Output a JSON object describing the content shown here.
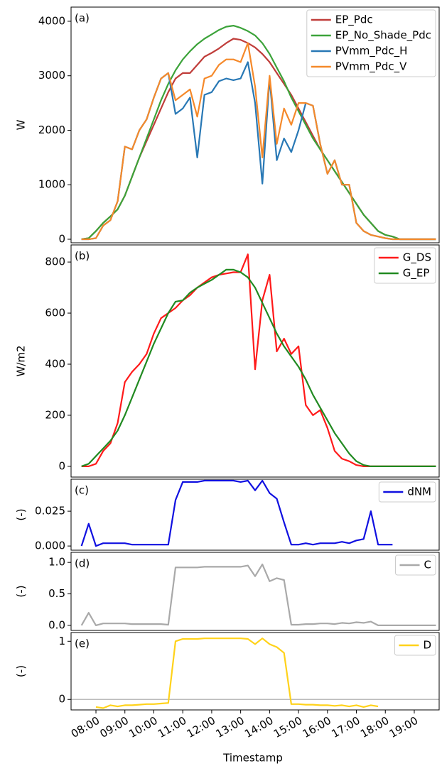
{
  "chart_data": [
    {
      "type": "line",
      "annotation": "(a)",
      "ylabel": "W",
      "legend": "upper right",
      "x": [
        7.5,
        7.75,
        8,
        8.25,
        8.5,
        8.75,
        9,
        9.25,
        9.5,
        9.75,
        10,
        10.25,
        10.5,
        10.75,
        11,
        11.25,
        11.5,
        11.75,
        12,
        12.25,
        12.5,
        12.75,
        13,
        13.25,
        13.5,
        13.75,
        14,
        14.25,
        14.5,
        14.75,
        15,
        15.25,
        15.5,
        15.75,
        16,
        16.25,
        16.5,
        16.75,
        17,
        17.25,
        17.5,
        17.75,
        18,
        18.25,
        18.5,
        18.75,
        19,
        19.25,
        19.5,
        19.75
      ],
      "xlim": [
        7.14,
        19.86
      ],
      "ylim": [
        -65,
        4260
      ],
      "yticks": [
        0,
        1000,
        2000,
        3000,
        4000
      ],
      "series": [
        {
          "name": "EP_Pdc",
          "color": "#c03d3a",
          "values": [
            0,
            20,
            150,
            300,
            420,
            550,
            800,
            1150,
            1500,
            1800,
            2100,
            2400,
            2700,
            2950,
            3050,
            3050,
            3200,
            3350,
            3420,
            3500,
            3600,
            3680,
            3660,
            3600,
            3520,
            3400,
            3250,
            3050,
            2850,
            2650,
            2400,
            2150,
            1900,
            1650,
            1450,
            1250,
            1050,
            850,
            650,
            450,
            300,
            150,
            80,
            50,
            0,
            0,
            0,
            0,
            0,
            0
          ]
        },
        {
          "name": "EP_No_Shade_Pdc",
          "color": "#3ca33a",
          "values": [
            0,
            20,
            150,
            300,
            420,
            550,
            800,
            1150,
            1500,
            1850,
            2200,
            2550,
            2850,
            3100,
            3300,
            3450,
            3580,
            3680,
            3760,
            3840,
            3900,
            3920,
            3880,
            3820,
            3740,
            3600,
            3400,
            3150,
            2900,
            2600,
            2350,
            2100,
            1850,
            1650,
            1450,
            1250,
            1050,
            850,
            650,
            450,
            300,
            150,
            80,
            50,
            0,
            0,
            0,
            0,
            0,
            0
          ]
        },
        {
          "name": "PVmm_Pdc_H",
          "color": "#2878b5",
          "values": [
            0,
            0,
            20,
            250,
            350,
            700,
            1700,
            1650,
            2000,
            2200,
            2600,
            2950,
            3050,
            2300,
            2400,
            2600,
            1500,
            2650,
            2700,
            2900,
            2950,
            2920,
            2950,
            3250,
            2500,
            1020,
            2950,
            1450,
            1850,
            1600,
            2000,
            2500,
            2450,
            1750,
            1200,
            1450,
            1000,
            1000,
            300,
            150,
            80,
            50,
            20,
            0,
            0,
            0,
            0,
            0,
            0,
            0
          ]
        },
        {
          "name": "PVmm_Pdc_V",
          "color": "#f5892a",
          "values": [
            0,
            0,
            20,
            250,
            350,
            700,
            1700,
            1650,
            2000,
            2200,
            2600,
            2950,
            3050,
            2550,
            2650,
            2750,
            2250,
            2950,
            3000,
            3200,
            3300,
            3300,
            3250,
            3600,
            2800,
            1500,
            3000,
            1750,
            2400,
            2100,
            2500,
            2500,
            2450,
            1750,
            1200,
            1450,
            1000,
            1000,
            300,
            150,
            80,
            50,
            20,
            0,
            0,
            0,
            0,
            0,
            0,
            0
          ]
        }
      ]
    },
    {
      "type": "line",
      "annotation": "(b)",
      "ylabel": "W/m2",
      "legend": "upper right",
      "x": [
        7.5,
        7.75,
        8,
        8.25,
        8.5,
        8.75,
        9,
        9.25,
        9.5,
        9.75,
        10,
        10.25,
        10.5,
        10.75,
        11,
        11.25,
        11.5,
        11.75,
        12,
        12.25,
        12.5,
        12.75,
        13,
        13.25,
        13.5,
        13.75,
        14,
        14.25,
        14.5,
        14.75,
        15,
        15.25,
        15.5,
        15.75,
        16,
        16.25,
        16.5,
        16.75,
        17,
        17.25,
        17.5,
        17.75,
        18,
        18.25,
        18.5,
        18.75,
        19,
        19.25,
        19.5,
        19.75
      ],
      "xlim": [
        7.14,
        19.86
      ],
      "ylim": [
        -42,
        867
      ],
      "yticks": [
        0,
        200,
        400,
        600,
        800
      ],
      "series": [
        {
          "name": "G_DS",
          "color": "#ff1a1a",
          "values": [
            0,
            0,
            10,
            60,
            90,
            170,
            330,
            370,
            400,
            440,
            520,
            580,
            600,
            620,
            650,
            670,
            700,
            720,
            740,
            750,
            755,
            760,
            760,
            830,
            380,
            650,
            750,
            450,
            500,
            440,
            470,
            240,
            200,
            220,
            150,
            60,
            30,
            20,
            5,
            0,
            0,
            0,
            0,
            0,
            0,
            0,
            0,
            0,
            0,
            0
          ]
        },
        {
          "name": "G_EP",
          "color": "#218a21",
          "values": [
            0,
            10,
            40,
            70,
            100,
            140,
            200,
            270,
            340,
            410,
            480,
            540,
            600,
            645,
            650,
            680,
            700,
            715,
            730,
            750,
            770,
            770,
            760,
            740,
            700,
            640,
            580,
            520,
            470,
            430,
            390,
            340,
            280,
            230,
            180,
            130,
            90,
            50,
            20,
            5,
            0,
            0,
            0,
            0,
            0,
            0,
            0,
            0,
            0,
            0
          ]
        }
      ]
    },
    {
      "type": "line",
      "annotation": "(c)",
      "ylabel": "(-)",
      "legend": "upper right",
      "x": [
        7.5,
        7.75,
        8,
        8.25,
        8.5,
        8.75,
        9,
        9.25,
        9.5,
        9.75,
        10,
        10.25,
        10.5,
        10.75,
        11,
        11.25,
        11.5,
        11.75,
        12,
        12.25,
        12.5,
        12.75,
        13,
        13.25,
        13.5,
        13.75,
        14,
        14.25,
        14.5,
        14.75,
        15,
        15.25,
        15.5,
        15.75,
        16,
        16.25,
        16.5,
        16.75,
        17,
        17.25,
        17.5,
        17.75,
        18,
        18.25,
        18.5,
        18.75,
        19,
        19.25,
        19.5,
        19.75
      ],
      "xlim": [
        7.14,
        19.86
      ],
      "ylim": [
        -0.003,
        0.048
      ],
      "yticks": [
        {
          "value": 0,
          "label": "0.000"
        },
        {
          "value": 0.025,
          "label": "0.025"
        }
      ],
      "series": [
        {
          "name": "dNM",
          "color": "#1010e0",
          "values": [
            0,
            0.016,
            0,
            0.002,
            0.002,
            0.002,
            0.002,
            0.001,
            0.001,
            0.001,
            0.001,
            0.001,
            0.001,
            0.033,
            0.046,
            0.046,
            0.046,
            0.047,
            0.047,
            0.047,
            0.047,
            0.047,
            0.046,
            0.047,
            0.04,
            0.047,
            0.038,
            0.034,
            0.017,
            0.001,
            0.001,
            0.002,
            0.001,
            0.002,
            0.002,
            0.002,
            0.003,
            0.002,
            0.004,
            0.005,
            0.025,
            0.001,
            0.001,
            0.001,
            null,
            null,
            null,
            null,
            null,
            null
          ]
        }
      ]
    },
    {
      "type": "line",
      "annotation": "(d)",
      "ylabel": "(-)",
      "legend": "upper right",
      "x": [
        7.5,
        7.75,
        8,
        8.25,
        8.5,
        8.75,
        9,
        9.25,
        9.5,
        9.75,
        10,
        10.25,
        10.5,
        10.75,
        11,
        11.25,
        11.5,
        11.75,
        12,
        12.25,
        12.5,
        12.75,
        13,
        13.25,
        13.5,
        13.75,
        14,
        14.25,
        14.5,
        14.75,
        15,
        15.25,
        15.5,
        15.75,
        16,
        16.25,
        16.5,
        16.75,
        17,
        17.25,
        17.5,
        17.75,
        18,
        18.25,
        18.5,
        18.75,
        19,
        19.25,
        19.5,
        19.75
      ],
      "xlim": [
        7.14,
        19.86
      ],
      "ylim": [
        -0.08,
        1.16
      ],
      "yticks": [
        {
          "value": 0,
          "label": "0.0"
        },
        {
          "value": 0.5,
          "label": "0.5"
        },
        {
          "value": 1,
          "label": "1.0"
        }
      ],
      "series": [
        {
          "name": "C",
          "color": "#a9a9a9",
          "values": [
            0,
            0.2,
            0,
            0.03,
            0.03,
            0.03,
            0.03,
            0.02,
            0.02,
            0.02,
            0.02,
            0.02,
            0.01,
            0.92,
            0.92,
            0.92,
            0.92,
            0.93,
            0.93,
            0.93,
            0.93,
            0.93,
            0.93,
            0.95,
            0.78,
            0.97,
            0.7,
            0.75,
            0.72,
            0.01,
            0.01,
            0.02,
            0.02,
            0.03,
            0.03,
            0.02,
            0.04,
            0.03,
            0.05,
            0.04,
            0.06,
            0,
            0,
            0,
            0,
            0,
            0,
            0,
            0,
            0
          ]
        }
      ]
    },
    {
      "type": "line",
      "annotation": "(e)",
      "ylabel": "(-)",
      "legend": "upper right",
      "xlabel": "Timestamp",
      "x": [
        7.5,
        7.75,
        8,
        8.25,
        8.5,
        8.75,
        9,
        9.25,
        9.5,
        9.75,
        10,
        10.25,
        10.5,
        10.75,
        11,
        11.25,
        11.5,
        11.75,
        12,
        12.25,
        12.5,
        12.75,
        13,
        13.25,
        13.5,
        13.75,
        14,
        14.25,
        14.5,
        14.75,
        15,
        15.25,
        15.5,
        15.75,
        16,
        16.25,
        16.5,
        16.75,
        17,
        17.25,
        17.5,
        17.75,
        18,
        18.25,
        18.5,
        18.75,
        19,
        19.25,
        19.5,
        19.75
      ],
      "xlim": [
        7.14,
        19.86
      ],
      "ylim": [
        -0.18,
        1.15
      ],
      "yticks": [
        0,
        1
      ],
      "reference_line": 0,
      "xticks": [
        {
          "value": 8,
          "label": "08:00"
        },
        {
          "value": 9,
          "label": "09:00"
        },
        {
          "value": 10,
          "label": "10:00"
        },
        {
          "value": 11,
          "label": "11:00"
        },
        {
          "value": 12,
          "label": "12:00"
        },
        {
          "value": 13,
          "label": "13:00"
        },
        {
          "value": 14,
          "label": "14:00"
        },
        {
          "value": 15,
          "label": "15:00"
        },
        {
          "value": 16,
          "label": "16:00"
        },
        {
          "value": 17,
          "label": "17:00"
        },
        {
          "value": 18,
          "label": "18:00"
        },
        {
          "value": 19,
          "label": "19:00"
        }
      ],
      "series": [
        {
          "name": "D",
          "color": "#ffd21a",
          "values": [
            null,
            null,
            -0.13,
            -0.15,
            -0.1,
            -0.12,
            -0.1,
            -0.1,
            -0.09,
            -0.08,
            -0.08,
            -0.07,
            -0.06,
            1.0,
            1.04,
            1.04,
            1.04,
            1.05,
            1.05,
            1.05,
            1.05,
            1.05,
            1.05,
            1.04,
            0.95,
            1.05,
            0.95,
            0.9,
            0.8,
            -0.08,
            -0.08,
            -0.09,
            -0.09,
            -0.1,
            -0.1,
            -0.11,
            -0.1,
            -0.12,
            -0.1,
            -0.13,
            -0.1,
            -0.12,
            null,
            null,
            null,
            null,
            null,
            null,
            null,
            null
          ]
        }
      ]
    }
  ]
}
